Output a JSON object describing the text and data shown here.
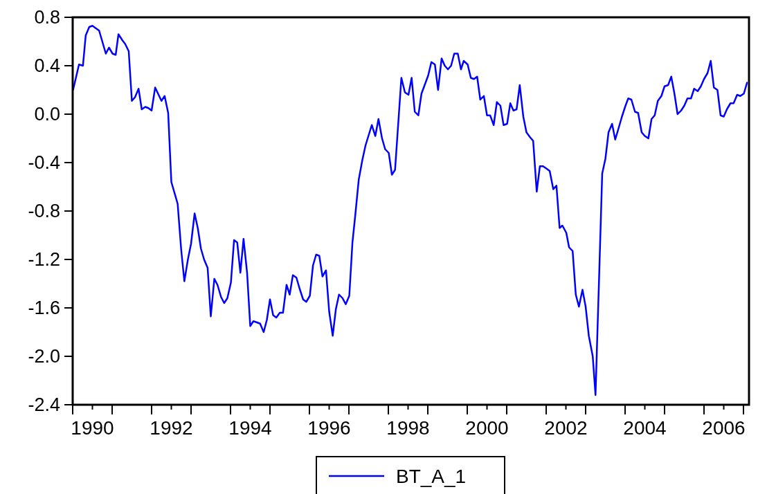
{
  "chart_data": {
    "type": "line",
    "legend": "bottom",
    "grid": false,
    "marker": "none",
    "line_style": "solid",
    "xlim": [
      1990,
      2007.14
    ],
    "ylim": [
      -2.4,
      0.8
    ],
    "xticks": [
      {
        "value": 1990,
        "label": null
      },
      {
        "value": 1990.5,
        "label": "1990"
      },
      {
        "value": 1991,
        "label": null
      },
      {
        "value": 1992,
        "label": null
      },
      {
        "value": 1992.5,
        "label": "1992"
      },
      {
        "value": 1993,
        "label": null
      },
      {
        "value": 1994,
        "label": null
      },
      {
        "value": 1994.5,
        "label": "1994"
      },
      {
        "value": 1995,
        "label": null
      },
      {
        "value": 1996,
        "label": null
      },
      {
        "value": 1996.5,
        "label": "1996"
      },
      {
        "value": 1997,
        "label": null
      },
      {
        "value": 1998,
        "label": null
      },
      {
        "value": 1998.5,
        "label": "1998"
      },
      {
        "value": 1999,
        "label": null
      },
      {
        "value": 2000,
        "label": null
      },
      {
        "value": 2000.5,
        "label": "2000"
      },
      {
        "value": 2001,
        "label": null
      },
      {
        "value": 2002,
        "label": null
      },
      {
        "value": 2002.5,
        "label": "2002"
      },
      {
        "value": 2003,
        "label": null
      },
      {
        "value": 2004,
        "label": null
      },
      {
        "value": 2004.5,
        "label": "2004"
      },
      {
        "value": 2005,
        "label": null
      },
      {
        "value": 2006,
        "label": null
      },
      {
        "value": 2006.5,
        "label": "2006"
      },
      {
        "value": 2007,
        "label": null
      }
    ],
    "yticks": [
      0.8,
      0.4,
      {
        "value": 0,
        "label": "0.0"
      },
      -0.4,
      -0.8,
      -1.2,
      -1.6,
      {
        "value": -2,
        "label": "-2.0"
      },
      -2.4
    ],
    "series": [
      {
        "name": "BT_A_1",
        "color": "#0000ff",
        "x": [
          1990.01,
          1990.16,
          1990.26,
          1990.33,
          1990.42,
          1990.5,
          1990.67,
          1990.84,
          1990.92,
          1991.01,
          1991.09,
          1991.16,
          1991.26,
          1991.33,
          1991.42,
          1991.5,
          1991.58,
          1991.67,
          1991.75,
          1991.84,
          1991.92,
          1992,
          1992.09,
          1992.25,
          1992.33,
          1992.42,
          1992.5,
          1992.66,
          1992.75,
          1992.83,
          1992.92,
          1993,
          1993.09,
          1993.17,
          1993.25,
          1993.33,
          1993.42,
          1993.5,
          1993.59,
          1993.67,
          1993.76,
          1993.84,
          1993.92,
          1994.01,
          1994.09,
          1994.17,
          1994.25,
          1994.33,
          1994.42,
          1994.5,
          1994.58,
          1994.67,
          1994.75,
          1994.84,
          1994.92,
          1995,
          1995.08,
          1995.16,
          1995.25,
          1995.33,
          1995.42,
          1995.5,
          1995.58,
          1995.67,
          1995.75,
          1995.84,
          1995.92,
          1996.01,
          1996.09,
          1996.17,
          1996.25,
          1996.33,
          1996.42,
          1996.5,
          1996.59,
          1996.67,
          1996.75,
          1996.84,
          1996.92,
          1997.01,
          1997.09,
          1997.16,
          1997.25,
          1997.34,
          1997.42,
          1997.58,
          1997.67,
          1997.75,
          1997.84,
          1997.92,
          1998.01,
          1998.09,
          1998.17,
          1998.33,
          1998.42,
          1998.51,
          1998.59,
          1998.67,
          1998.76,
          1998.84,
          1998.92,
          1999.01,
          1999.09,
          1999.18,
          1999.26,
          1999.35,
          1999.43,
          1999.51,
          1999.59,
          1999.67,
          1999.76,
          1999.84,
          1999.91,
          2000.01,
          2000.09,
          2000.17,
          2000.25,
          2000.33,
          2000.42,
          2000.5,
          2000.58,
          2000.67,
          2000.75,
          2000.84,
          2000.92,
          2001.01,
          2001.09,
          2001.17,
          2001.25,
          2001.33,
          2001.42,
          2001.5,
          2001.59,
          2001.67,
          2001.76,
          2001.84,
          2001.92,
          2002.01,
          2002.09,
          2002.18,
          2002.26,
          2002.34,
          2002.41,
          2002.51,
          2002.58,
          2002.67,
          2002.75,
          2002.83,
          2002.92,
          2003,
          2003.08,
          2003.18,
          2003.25,
          2003.34,
          2003.42,
          2003.5,
          2003.58,
          2003.67,
          2003.75,
          2003.84,
          2003.92,
          2004.01,
          2004.08,
          2004.16,
          2004.25,
          2004.33,
          2004.42,
          2004.5,
          2004.59,
          2004.67,
          2004.75,
          2004.83,
          2004.92,
          2005,
          2005.09,
          2005.17,
          2005.25,
          2005.33,
          2005.42,
          2005.5,
          2005.58,
          2005.67,
          2005.75,
          2005.84,
          2005.92,
          2006,
          2006.09,
          2006.17,
          2006.25,
          2006.34,
          2006.42,
          2006.5,
          2006.58,
          2006.67,
          2006.75,
          2006.84,
          2006.92,
          2007.01,
          2007.09
        ],
        "values": [
          0.2,
          0.41,
          0.4,
          0.65,
          0.72,
          0.73,
          0.69,
          0.5,
          0.55,
          0.5,
          0.49,
          0.66,
          0.61,
          0.58,
          0.52,
          0.11,
          0.14,
          0.21,
          0.04,
          0.06,
          0.05,
          0.03,
          0.22,
          0.11,
          0.15,
          0.01,
          -0.56,
          -0.74,
          -1.12,
          -1.38,
          -1.2,
          -1.07,
          -0.82,
          -0.94,
          -1.11,
          -1.2,
          -1.27,
          -1.67,
          -1.36,
          -1.41,
          -1.51,
          -1.56,
          -1.52,
          -1.39,
          -1.04,
          -1.06,
          -1.31,
          -1.03,
          -1.31,
          -1.75,
          -1.71,
          -1.72,
          -1.73,
          -1.8,
          -1.7,
          -1.53,
          -1.66,
          -1.68,
          -1.64,
          -1.64,
          -1.41,
          -1.49,
          -1.33,
          -1.35,
          -1.44,
          -1.53,
          -1.55,
          -1.5,
          -1.25,
          -1.16,
          -1.17,
          -1.34,
          -1.29,
          -1.63,
          -1.83,
          -1.61,
          -1.49,
          -1.52,
          -1.57,
          -1.5,
          -1.06,
          -0.84,
          -0.54,
          -0.38,
          -0.26,
          -0.09,
          -0.18,
          -0.04,
          -0.2,
          -0.29,
          -0.32,
          -0.5,
          -0.46,
          0.3,
          0.18,
          0.16,
          0.3,
          0.02,
          -0.01,
          0.17,
          0.24,
          0.32,
          0.43,
          0.41,
          0.2,
          0.46,
          0.4,
          0.37,
          0.4,
          0.5,
          0.5,
          0.37,
          0.44,
          0.41,
          0.3,
          0.29,
          0.31,
          0.12,
          0.15,
          -0.01,
          -0.01,
          -0.09,
          0.1,
          0.07,
          -0.09,
          -0.08,
          0.09,
          0.03,
          0.04,
          0.24,
          -0.02,
          -0.15,
          -0.19,
          -0.22,
          -0.64,
          -0.43,
          -0.43,
          -0.45,
          -0.47,
          -0.62,
          -0.59,
          -0.94,
          -0.92,
          -0.98,
          -1.1,
          -1.13,
          -1.49,
          -1.59,
          -1.45,
          -1.59,
          -1.83,
          -2,
          -2.32,
          -1.36,
          -0.49,
          -0.37,
          -0.15,
          -0.08,
          -0.21,
          -0.11,
          -0.02,
          0.07,
          0.13,
          0.12,
          0.02,
          0.01,
          -0.15,
          -0.18,
          -0.2,
          -0.04,
          -0.01,
          0.11,
          0.15,
          0.23,
          0.24,
          0.31,
          0.17,
          0,
          0.03,
          0.07,
          0.13,
          0.13,
          0.21,
          0.19,
          0.23,
          0.29,
          0.34,
          0.44,
          0.22,
          0.2,
          -0.01,
          -0.02,
          0.04,
          0.09,
          0.09,
          0.16,
          0.15,
          0.17,
          0.26
        ]
      }
    ]
  }
}
